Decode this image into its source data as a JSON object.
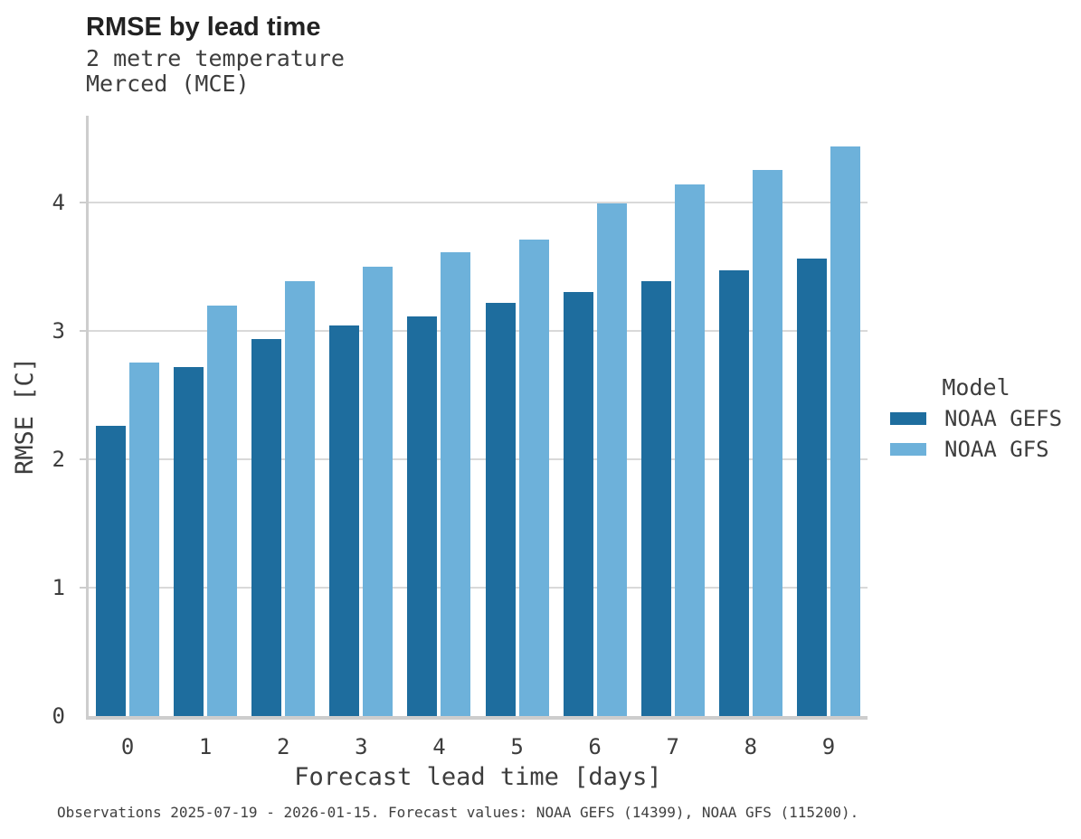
{
  "header": {
    "title": "RMSE by lead time",
    "subtitle_line1": "2 metre temperature",
    "subtitle_line2": "Merced (MCE)"
  },
  "legend": {
    "title": "Model",
    "items": [
      {
        "label": "NOAA GEFS",
        "color": "#1e6d9e"
      },
      {
        "label": "NOAA GFS",
        "color": "#6db1da"
      }
    ]
  },
  "caption": "Observations 2025-07-19 - 2026-01-15. Forecast values: NOAA GEFS (14399), NOAA GFS (115200).",
  "chart_data": {
    "type": "bar",
    "title": "RMSE by lead time",
    "subtitle": [
      "2 metre temperature",
      "Merced (MCE)"
    ],
    "xlabel": "Forecast lead time [days]",
    "ylabel": "RMSE [C]",
    "categories": [
      "0",
      "1",
      "2",
      "3",
      "4",
      "5",
      "6",
      "7",
      "8",
      "9"
    ],
    "series": [
      {
        "name": "NOAA GEFS",
        "color": "#1e6d9e",
        "values": [
          2.26,
          2.72,
          2.94,
          3.04,
          3.11,
          3.22,
          3.3,
          3.39,
          3.47,
          3.56
        ]
      },
      {
        "name": "NOAA GFS",
        "color": "#6db1da",
        "values": [
          2.75,
          3.2,
          3.39,
          3.5,
          3.61,
          3.71,
          3.99,
          4.14,
          4.25,
          4.44
        ]
      }
    ],
    "yticks": [
      0,
      1,
      2,
      3,
      4
    ],
    "ylim": [
      0,
      4.68
    ],
    "grid": true,
    "legend_title": "Model",
    "legend_position": "right"
  }
}
